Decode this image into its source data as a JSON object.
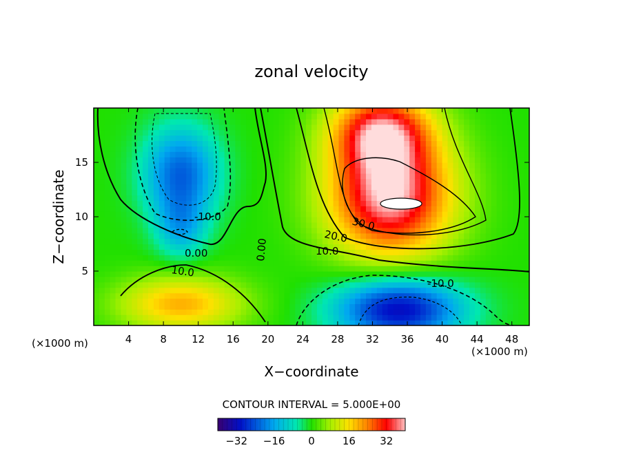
{
  "chart_data": {
    "type": "heatmap",
    "title": "zonal velocity",
    "xlabel": "X−coordinate",
    "ylabel": "Z−coordinate",
    "x_unit": "(×1000 m)",
    "z_unit": "(×1000 m)",
    "xlim": [
      0,
      50
    ],
    "ylim": [
      0,
      20
    ],
    "x_ticks": [
      "4",
      "8",
      "12",
      "16",
      "20",
      "24",
      "28",
      "32",
      "36",
      "40",
      "44",
      "48"
    ],
    "y_ticks": [
      "5",
      "10",
      "15"
    ],
    "contour_interval_text": "CONTOUR INTERVAL = 5.000E+00",
    "contour_labels": [
      "-10.0",
      "0.00",
      "0.00",
      "10.0",
      "20.0",
      "30.0",
      "10.0",
      "-10.0"
    ],
    "colorbar": {
      "range": [
        -40,
        40
      ],
      "ticks": [
        "−32",
        "−16",
        "0",
        "16",
        "32"
      ]
    },
    "features": [
      {
        "kind": "negative",
        "x": 10,
        "z": 14,
        "value": -22,
        "sx": 3,
        "sz": 3
      },
      {
        "kind": "negative",
        "x": 10,
        "z": 9,
        "value": -12,
        "sx": 2,
        "sz": 2
      },
      {
        "kind": "positive",
        "x": 34,
        "z": 12,
        "value": 40,
        "sx": 5,
        "sz": 4
      },
      {
        "kind": "positive",
        "x": 33,
        "z": 18,
        "value": 30,
        "sx": 4,
        "sz": 2.5
      },
      {
        "kind": "negative",
        "x": 35,
        "z": 1.5,
        "value": -32,
        "sx": 5,
        "sz": 2
      },
      {
        "kind": "positive",
        "x": 10,
        "z": 2,
        "value": 20,
        "sx": 5,
        "sz": 1.8
      }
    ]
  }
}
